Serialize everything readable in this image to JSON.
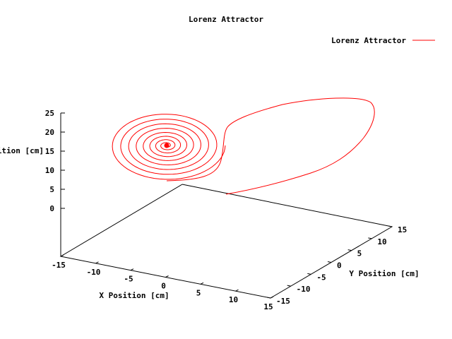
{
  "chart_data": {
    "type": "line",
    "title": "Lorenz Attractor",
    "xlabel": "X Position [cm]",
    "ylabel": "Y Position [cm]",
    "zlabel": "Z Position [cm]",
    "series": [
      {
        "name": "Lorenz Attractor",
        "color": "#ff0000"
      }
    ],
    "xlim": [
      -15,
      15
    ],
    "ylim": [
      -15,
      15
    ],
    "zlim": [
      0,
      25
    ],
    "x_ticks": [
      "-15",
      "-10",
      "-5",
      "0",
      "5",
      "10",
      "15"
    ],
    "y_ticks": [
      "-15",
      "-10",
      "-5",
      "0",
      "5",
      "10",
      "15"
    ],
    "z_ticks": [
      "25",
      "20",
      "15",
      "10",
      "5",
      "0"
    ],
    "legend_position": "top-right",
    "grid": false
  }
}
